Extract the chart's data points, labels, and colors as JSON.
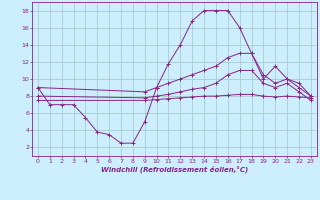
{
  "xlabel": "Windchill (Refroidissement éolien,°C)",
  "background_color": "#cceeff",
  "grid_color": "#aacccc",
  "line_color": "#882288",
  "xlim": [
    -0.5,
    23.5
  ],
  "ylim": [
    1,
    19
  ],
  "xticks": [
    0,
    1,
    2,
    3,
    4,
    5,
    6,
    7,
    8,
    9,
    10,
    11,
    12,
    13,
    14,
    15,
    16,
    17,
    18,
    19,
    20,
    21,
    22,
    23
  ],
  "yticks": [
    2,
    4,
    6,
    8,
    10,
    12,
    14,
    16,
    18
  ],
  "series1_x": [
    0,
    1,
    2,
    3,
    4,
    5,
    6,
    7,
    8,
    9,
    10,
    11,
    12,
    13,
    14,
    15,
    16,
    17,
    18,
    19,
    20,
    21,
    22,
    23
  ],
  "series1_y": [
    9,
    7,
    7,
    7,
    5.5,
    3.8,
    3.5,
    2.5,
    2.5,
    5,
    9,
    11.8,
    14,
    16.8,
    18,
    18,
    18,
    16,
    13,
    10,
    11.5,
    10,
    9.5,
    8
  ],
  "series2_x": [
    0,
    9,
    10,
    11,
    12,
    13,
    14,
    15,
    16,
    17,
    18,
    19,
    20,
    21,
    22,
    23
  ],
  "series2_y": [
    9,
    8.5,
    9.0,
    9.5,
    10.0,
    10.5,
    11.0,
    11.5,
    12.5,
    13.0,
    13.0,
    10.5,
    9.5,
    10.0,
    9.0,
    8.0
  ],
  "series3_x": [
    0,
    9,
    10,
    11,
    12,
    13,
    14,
    15,
    16,
    17,
    18,
    19,
    20,
    21,
    22,
    23
  ],
  "series3_y": [
    8,
    7.8,
    8.0,
    8.2,
    8.5,
    8.8,
    9.0,
    9.5,
    10.5,
    11.0,
    11.0,
    9.5,
    9.0,
    9.5,
    8.5,
    7.5
  ],
  "series4_x": [
    0,
    9,
    10,
    11,
    12,
    13,
    14,
    15,
    16,
    17,
    18,
    19,
    20,
    21,
    22,
    23
  ],
  "series4_y": [
    7.5,
    7.5,
    7.6,
    7.7,
    7.8,
    7.9,
    8.0,
    8.0,
    8.1,
    8.2,
    8.2,
    8.0,
    7.9,
    8.0,
    7.9,
    7.8
  ],
  "marker": "+"
}
